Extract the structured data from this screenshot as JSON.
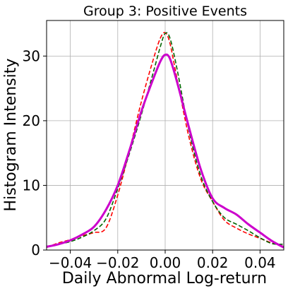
{
  "chart_data": {
    "type": "line",
    "title": "Group 3: Positive Events",
    "xlabel": "Daily Abnormal Log-return",
    "ylabel": "Histogram Intensity",
    "xlim": [
      -0.05,
      0.05
    ],
    "ylim": [
      0,
      35.5
    ],
    "xticks": [
      -0.04,
      -0.02,
      0.0,
      0.02,
      0.04
    ],
    "xtick_labels": [
      "−0.04",
      "−0.02",
      "0.00",
      "0.02",
      "0.04"
    ],
    "yticks": [
      0,
      10,
      20,
      30
    ],
    "ytick_labels": [
      "0",
      "10",
      "20",
      "30"
    ],
    "grid": true,
    "series": [
      {
        "color": "#cc00cc",
        "style": "solid",
        "x": [
          -0.05,
          -0.045,
          -0.04,
          -0.035,
          -0.03,
          -0.025,
          -0.02,
          -0.015,
          -0.01,
          -0.005,
          -0.002,
          0.0,
          0.002,
          0.005,
          0.01,
          0.015,
          0.02,
          0.025,
          0.03,
          0.035,
          0.04,
          0.045,
          0.05
        ],
        "y": [
          0.5,
          0.9,
          1.5,
          2.4,
          3.6,
          6.2,
          10.0,
          15.5,
          21.5,
          26.5,
          29.2,
          30.2,
          29.6,
          26.0,
          19.0,
          12.5,
          8.0,
          6.5,
          5.5,
          4.0,
          2.7,
          1.4,
          0.4
        ]
      },
      {
        "color": "#ff0000",
        "style": "dashed",
        "x": [
          -0.05,
          -0.045,
          -0.04,
          -0.035,
          -0.03,
          -0.025,
          -0.02,
          -0.015,
          -0.01,
          -0.005,
          -0.002,
          0.0,
          0.002,
          0.005,
          0.01,
          0.015,
          0.02,
          0.025,
          0.03,
          0.035,
          0.04,
          0.045,
          0.05
        ],
        "y": [
          0.4,
          1.1,
          1.6,
          2.2,
          2.7,
          3.4,
          8.5,
          15.5,
          23.0,
          29.5,
          32.8,
          33.6,
          32.0,
          26.5,
          17.5,
          11.0,
          7.5,
          4.6,
          3.4,
          2.5,
          1.8,
          1.1,
          0.6
        ]
      },
      {
        "color": "#006600",
        "style": "dashed",
        "x": [
          -0.05,
          -0.045,
          -0.04,
          -0.035,
          -0.03,
          -0.025,
          -0.02,
          -0.015,
          -0.01,
          -0.005,
          -0.002,
          0.0,
          0.002,
          0.005,
          0.01,
          0.015,
          0.02,
          0.025,
          0.03,
          0.035,
          0.04,
          0.045,
          0.05
        ],
        "y": [
          0.5,
          0.9,
          1.3,
          2.0,
          3.0,
          4.8,
          9.5,
          15.0,
          21.0,
          27.5,
          31.5,
          33.5,
          32.8,
          28.0,
          18.5,
          11.5,
          7.5,
          5.0,
          4.0,
          3.0,
          1.9,
          1.0,
          0.9
        ]
      }
    ]
  }
}
